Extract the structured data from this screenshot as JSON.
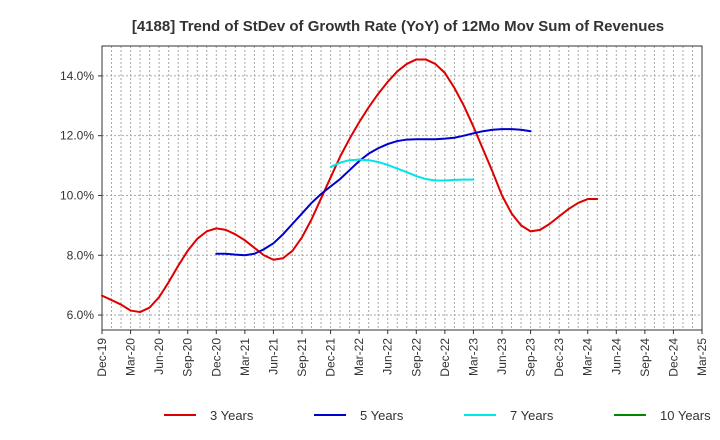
{
  "chart_data": {
    "type": "line",
    "title": "[4188]  Trend of StDev of Growth Rate (YoY) of 12Mo Mov Sum of Revenues",
    "xlabel": "",
    "ylabel": "",
    "x_start": "Dec-19",
    "x_end": "Mar-25",
    "ylim": [
      5.5,
      15.0
    ],
    "y_ticks": [
      6.0,
      8.0,
      10.0,
      12.0,
      14.0
    ],
    "y_tick_labels": [
      "6.0%",
      "8.0%",
      "10.0%",
      "12.0%",
      "14.0%"
    ],
    "x_ticks": [
      0,
      3,
      6,
      9,
      12,
      15,
      18,
      21,
      24,
      27,
      30,
      33,
      36,
      39,
      42,
      45,
      48,
      51,
      54,
      57,
      60,
      63
    ],
    "x_tick_labels": [
      "Dec-19",
      "Mar-20",
      "Jun-20",
      "Sep-20",
      "Dec-20",
      "Mar-21",
      "Jun-21",
      "Sep-21",
      "Dec-21",
      "Mar-22",
      "Jun-22",
      "Sep-22",
      "Dec-22",
      "Mar-23",
      "Jun-23",
      "Sep-23",
      "Dec-23",
      "Mar-24",
      "Jun-24",
      "Sep-24",
      "Dec-24",
      "Mar-25"
    ],
    "grid": true,
    "legend_position": "bottom",
    "series": [
      {
        "name": "3 Years",
        "color": "#dd0000",
        "points": [
          [
            0,
            6.65
          ],
          [
            2,
            6.35
          ],
          [
            3,
            6.15
          ],
          [
            4,
            6.1
          ],
          [
            5,
            6.25
          ],
          [
            6,
            6.6
          ],
          [
            7,
            7.1
          ],
          [
            8,
            7.65
          ],
          [
            9,
            8.15
          ],
          [
            10,
            8.55
          ],
          [
            11,
            8.8
          ],
          [
            12,
            8.9
          ],
          [
            13,
            8.85
          ],
          [
            14,
            8.7
          ],
          [
            15,
            8.5
          ],
          [
            16,
            8.25
          ],
          [
            17,
            8.0
          ],
          [
            18,
            7.85
          ],
          [
            19,
            7.9
          ],
          [
            20,
            8.15
          ],
          [
            21,
            8.6
          ],
          [
            22,
            9.2
          ],
          [
            23,
            9.9
          ],
          [
            24,
            10.6
          ],
          [
            25,
            11.3
          ],
          [
            26,
            11.9
          ],
          [
            27,
            12.45
          ],
          [
            28,
            12.95
          ],
          [
            29,
            13.4
          ],
          [
            30,
            13.8
          ],
          [
            31,
            14.15
          ],
          [
            32,
            14.4
          ],
          [
            33,
            14.55
          ],
          [
            34,
            14.55
          ],
          [
            35,
            14.4
          ],
          [
            36,
            14.1
          ],
          [
            37,
            13.6
          ],
          [
            38,
            13.0
          ],
          [
            39,
            12.3
          ],
          [
            40,
            11.55
          ],
          [
            41,
            10.8
          ],
          [
            42,
            10.0
          ],
          [
            43,
            9.4
          ],
          [
            44,
            9.0
          ],
          [
            45,
            8.8
          ],
          [
            46,
            8.85
          ],
          [
            47,
            9.05
          ],
          [
            48,
            9.3
          ],
          [
            49,
            9.55
          ],
          [
            50,
            9.75
          ],
          [
            51,
            9.88
          ],
          [
            52,
            9.88
          ]
        ]
      },
      {
        "name": "5 Years",
        "color": "#0000cc",
        "points": [
          [
            12,
            8.05
          ],
          [
            13,
            8.05
          ],
          [
            14,
            8.02
          ],
          [
            15,
            8.0
          ],
          [
            16,
            8.05
          ],
          [
            17,
            8.2
          ],
          [
            18,
            8.4
          ],
          [
            19,
            8.7
          ],
          [
            20,
            9.05
          ],
          [
            21,
            9.4
          ],
          [
            22,
            9.75
          ],
          [
            23,
            10.05
          ],
          [
            24,
            10.3
          ],
          [
            25,
            10.55
          ],
          [
            26,
            10.85
          ],
          [
            27,
            11.15
          ],
          [
            28,
            11.4
          ],
          [
            29,
            11.58
          ],
          [
            30,
            11.72
          ],
          [
            31,
            11.82
          ],
          [
            32,
            11.87
          ],
          [
            33,
            11.88
          ],
          [
            34,
            11.88
          ],
          [
            35,
            11.88
          ],
          [
            36,
            11.9
          ],
          [
            37,
            11.93
          ],
          [
            38,
            12.0
          ],
          [
            39,
            12.08
          ],
          [
            40,
            12.15
          ],
          [
            41,
            12.2
          ],
          [
            42,
            12.22
          ],
          [
            43,
            12.22
          ],
          [
            44,
            12.2
          ],
          [
            45,
            12.15
          ]
        ]
      },
      {
        "name": "7 Years",
        "color": "#00e5e5",
        "points": [
          [
            24,
            10.95
          ],
          [
            25,
            11.1
          ],
          [
            26,
            11.18
          ],
          [
            27,
            11.2
          ],
          [
            28,
            11.18
          ],
          [
            29,
            11.12
          ],
          [
            30,
            11.02
          ],
          [
            31,
            10.9
          ],
          [
            32,
            10.78
          ],
          [
            33,
            10.65
          ],
          [
            34,
            10.55
          ],
          [
            35,
            10.5
          ],
          [
            36,
            10.5
          ],
          [
            37,
            10.52
          ],
          [
            38,
            10.53
          ],
          [
            39,
            10.53
          ]
        ]
      },
      {
        "name": "10 Years",
        "color": "#008800",
        "points": []
      }
    ]
  }
}
